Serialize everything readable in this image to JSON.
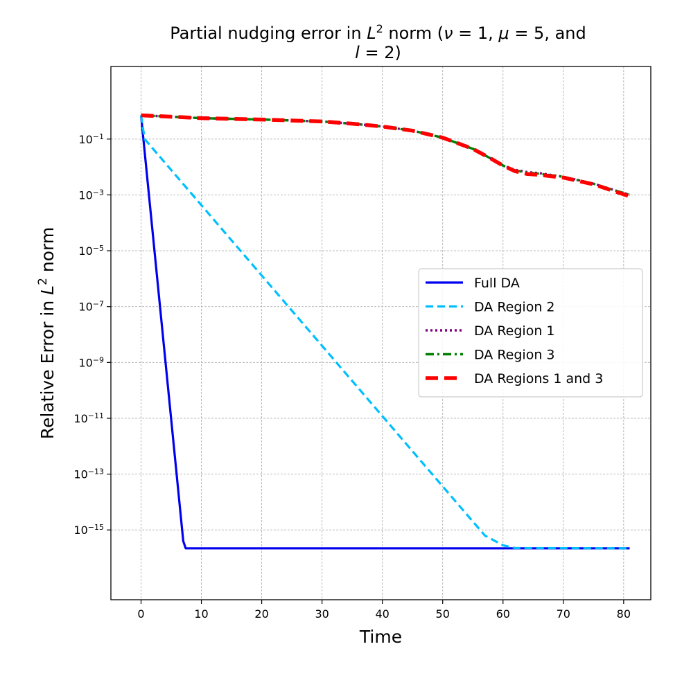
{
  "chart_data": {
    "type": "line",
    "title": "Partial nudging error in L² norm (ν = 1, μ = 5, and l = 2)",
    "title_lines": [
      [
        {
          "t": "Partial nudging error in ",
          "s": "normal"
        },
        {
          "t": "L",
          "s": "italic"
        },
        {
          "t": "2",
          "s": "sup"
        },
        {
          "t": " norm (",
          "s": "normal"
        },
        {
          "t": "ν",
          "s": "italic"
        },
        {
          "t": " = 1, ",
          "s": "normal"
        },
        {
          "t": "μ",
          "s": "italic"
        },
        {
          "t": " = 5, and",
          "s": "normal"
        }
      ],
      [
        {
          "t": "l",
          "s": "italic"
        },
        {
          "t": " = 2)",
          "s": "normal"
        }
      ]
    ],
    "xlabel": "Time",
    "ylabel": "Relative Error in L² norm",
    "ylabel_parts": [
      {
        "t": "Relative Error in ",
        "s": "normal"
      },
      {
        "t": "L",
        "s": "italic"
      },
      {
        "t": "2",
        "s": "sup"
      },
      {
        "t": " norm",
        "s": "normal"
      }
    ],
    "xlim": [
      -5,
      84.5
    ],
    "ylim_log10": [
      -17.5,
      1.6
    ],
    "yscale": "log",
    "xticks": [
      0,
      10,
      20,
      30,
      40,
      50,
      60,
      70,
      80
    ],
    "xtick_labels": [
      "0",
      "10",
      "20",
      "30",
      "40",
      "50",
      "60",
      "70",
      "80"
    ],
    "yticks_log10": [
      -1,
      -3,
      -5,
      -7,
      -9,
      -11,
      -13,
      -15
    ],
    "ytick_base": "10",
    "ytick_exponents": [
      "−1",
      "−3",
      "−5",
      "−7",
      "−9",
      "−11",
      "−13",
      "−15"
    ],
    "grid": true,
    "legend_position": "center-right",
    "series": [
      {
        "name": "Full DA",
        "color": "#0000ee",
        "style": "solid",
        "x": [
          0,
          7,
          7.4,
          81
        ],
        "log10_y": [
          -0.15,
          -15.4,
          -15.66,
          -15.66
        ]
      },
      {
        "name": "DA Region 2",
        "color": "#00bfff",
        "style": "dashed",
        "x": [
          0,
          0.6,
          57,
          60,
          62,
          81
        ],
        "log10_y": [
          -0.15,
          -1.0,
          -15.2,
          -15.55,
          -15.65,
          -15.66
        ]
      },
      {
        "name": "DA Region 1",
        "color": "#800080",
        "style": "dotted",
        "x": [
          0,
          10,
          20,
          30,
          35,
          40,
          45,
          50,
          55,
          58,
          60,
          62,
          64,
          66,
          70,
          75,
          81
        ],
        "log10_y": [
          -0.15,
          -0.25,
          -0.3,
          -0.37,
          -0.45,
          -0.55,
          -0.7,
          -0.95,
          -1.35,
          -1.7,
          -1.95,
          -2.1,
          -2.18,
          -2.22,
          -2.35,
          -2.6,
          -3.0
        ]
      },
      {
        "name": "DA Region 3",
        "color": "#008000",
        "style": "dashdot",
        "x": [
          0,
          10,
          20,
          30,
          35,
          40,
          45,
          50,
          55,
          58,
          60,
          62,
          64,
          66,
          70,
          75,
          81
        ],
        "log10_y": [
          -0.15,
          -0.25,
          -0.3,
          -0.37,
          -0.45,
          -0.55,
          -0.7,
          -0.95,
          -1.35,
          -1.7,
          -1.95,
          -2.12,
          -2.2,
          -2.24,
          -2.35,
          -2.6,
          -3.0
        ]
      },
      {
        "name": "DA Regions 1 and 3",
        "color": "#ff0000",
        "style": "bigdash",
        "x": [
          0,
          10,
          20,
          30,
          35,
          40,
          45,
          50,
          55,
          58,
          60,
          62,
          64,
          66,
          70,
          75,
          81
        ],
        "log10_y": [
          -0.15,
          -0.25,
          -0.3,
          -0.37,
          -0.45,
          -0.55,
          -0.7,
          -0.95,
          -1.35,
          -1.7,
          -1.95,
          -2.15,
          -2.25,
          -2.28,
          -2.38,
          -2.62,
          -3.05
        ]
      }
    ]
  }
}
